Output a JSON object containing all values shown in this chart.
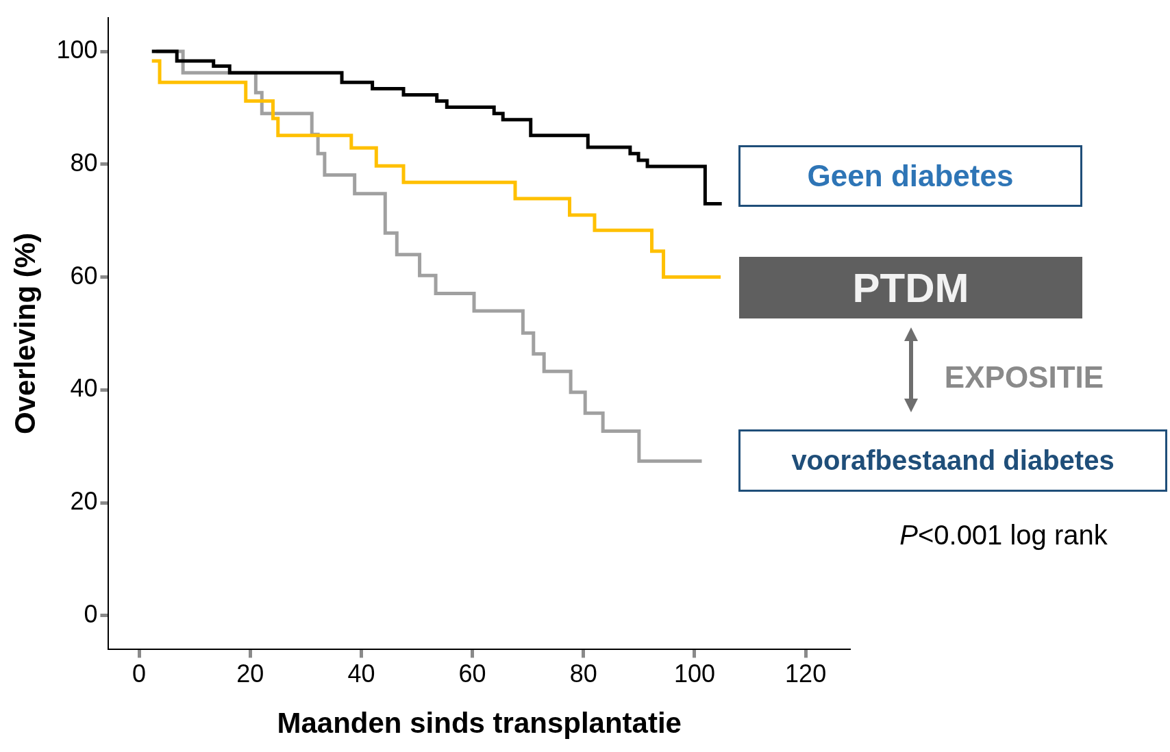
{
  "chart_data": {
    "type": "step",
    "xlabel": "Maanden sinds transplantatie",
    "ylabel": "Overleving (%)",
    "xlim": [
      -5.5,
      128
    ],
    "xticks": [
      0,
      20,
      40,
      60,
      80,
      100,
      120
    ],
    "ylim": [
      -6,
      106
    ],
    "yticks": [
      0,
      20,
      40,
      60,
      80,
      100
    ],
    "grid": false,
    "legend": false,
    "series": [
      {
        "color": "#000000",
        "x": [
          2.3,
          6.8,
          13.4,
          16.3,
          36.5,
          42,
          47.6,
          53.6,
          55.4,
          63.9,
          65.5,
          70.5,
          80.8,
          88.4,
          89.9,
          91.5,
          101.9,
          104.9
        ],
        "values": [
          100,
          98.3,
          97.4,
          96.2,
          94.5,
          93.4,
          92.3,
          91.2,
          90.1,
          89,
          87.9,
          85.1,
          83,
          81.9,
          80.7,
          79.6,
          73,
          73
        ]
      },
      {
        "color": "#ffc000",
        "x": [
          2.3,
          3.7,
          19.2,
          24.1,
          25,
          38.2,
          42.7,
          47.6,
          67.7,
          77.5,
          82,
          92.3,
          94.4,
          104.7
        ],
        "values": [
          98.3,
          94.5,
          91.2,
          88.1,
          85.1,
          82.9,
          79.7,
          76.8,
          73.9,
          71,
          68.3,
          64.6,
          60,
          60
        ]
      },
      {
        "color": "#a0a0a0",
        "x": [
          3.1,
          7.9,
          21,
          22.1,
          31.1,
          32.2,
          33.4,
          38.8,
          44.3,
          46.4,
          50.5,
          53.4,
          60.3,
          69.1,
          71,
          72.9,
          77.7,
          80.3,
          83.5,
          90,
          101.3
        ],
        "values": [
          100,
          96.2,
          92.7,
          89,
          85.3,
          81.9,
          78.1,
          74.8,
          67.8,
          64,
          60.3,
          57.1,
          54,
          50.1,
          46.4,
          43.3,
          39.6,
          35.9,
          32.7,
          27.4,
          27.4
        ]
      }
    ],
    "annotations": [
      "Geen diabetes",
      "PTDM",
      "EXPOSITIE",
      "voorafbestaand diabetes",
      "P<0.001 log rank"
    ]
  }
}
